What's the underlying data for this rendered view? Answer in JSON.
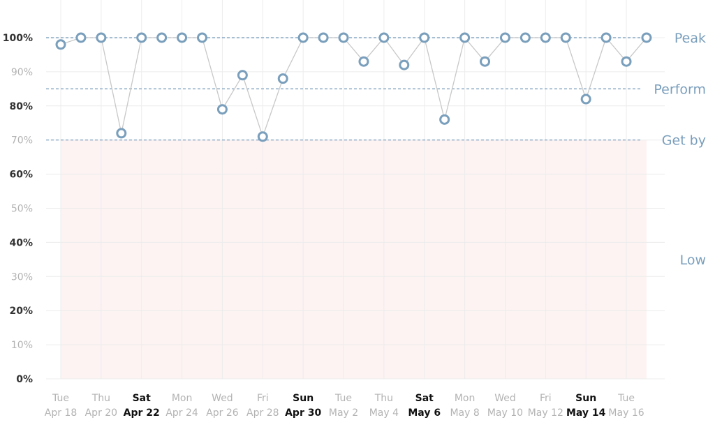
{
  "chart_data": {
    "type": "line",
    "title": "",
    "xlabel": "",
    "ylabel": "",
    "ylim": [
      0,
      100
    ],
    "y_ticks": [
      {
        "value": 0,
        "label": "0%",
        "bold": true
      },
      {
        "value": 10,
        "label": "10%",
        "bold": false
      },
      {
        "value": 20,
        "label": "20%",
        "bold": true
      },
      {
        "value": 30,
        "label": "30%",
        "bold": false
      },
      {
        "value": 40,
        "label": "40%",
        "bold": true
      },
      {
        "value": 50,
        "label": "50%",
        "bold": false
      },
      {
        "value": 60,
        "label": "60%",
        "bold": true
      },
      {
        "value": 70,
        "label": "70%",
        "bold": false
      },
      {
        "value": 80,
        "label": "80%",
        "bold": true
      },
      {
        "value": 90,
        "label": "90%",
        "bold": false
      },
      {
        "value": 100,
        "label": "100%",
        "bold": true
      }
    ],
    "x_tick_labels": [
      {
        "index": 0,
        "day": "Tue",
        "date": "Apr 18",
        "bold": false
      },
      {
        "index": 2,
        "day": "Thu",
        "date": "Apr 20",
        "bold": false
      },
      {
        "index": 4,
        "day": "Sat",
        "date": "Apr 22",
        "bold": true
      },
      {
        "index": 6,
        "day": "Mon",
        "date": "Apr 24",
        "bold": false
      },
      {
        "index": 8,
        "day": "Wed",
        "date": "Apr 26",
        "bold": false
      },
      {
        "index": 10,
        "day": "Fri",
        "date": "Apr 28",
        "bold": false
      },
      {
        "index": 12,
        "day": "Sun",
        "date": "Apr 30",
        "bold": true
      },
      {
        "index": 14,
        "day": "Tue",
        "date": "May 2",
        "bold": false
      },
      {
        "index": 16,
        "day": "Thu",
        "date": "May 4",
        "bold": false
      },
      {
        "index": 18,
        "day": "Sat",
        "date": "May 6",
        "bold": true
      },
      {
        "index": 20,
        "day": "Mon",
        "date": "May 8",
        "bold": false
      },
      {
        "index": 22,
        "day": "Wed",
        "date": "May 10",
        "bold": false
      },
      {
        "index": 24,
        "day": "Fri",
        "date": "May 12",
        "bold": false
      },
      {
        "index": 26,
        "day": "Sun",
        "date": "May 14",
        "bold": true
      },
      {
        "index": 28,
        "day": "Tue",
        "date": "May 16",
        "bold": false
      }
    ],
    "series": [
      {
        "values": [
          98,
          100,
          100,
          72,
          100,
          100,
          100,
          100,
          79,
          89,
          71,
          88,
          100,
          100,
          100,
          93,
          100,
          92,
          100,
          76,
          100,
          93,
          100,
          100,
          100,
          100,
          82,
          100,
          93,
          100
        ]
      }
    ],
    "thresholds": [
      {
        "label": "Peak",
        "value": 100
      },
      {
        "label": "Perform",
        "value": 85
      },
      {
        "label": "Get by",
        "value": 70
      }
    ],
    "low_zone": {
      "label": "Low",
      "from": 0,
      "to": 70
    },
    "grid": true,
    "colors": {
      "marker_stroke": "#7a9fbc",
      "marker_fill": "#ffffff",
      "line": "#c8c8c8",
      "threshold_line": "#6f96b8",
      "zone_label": "#7a9fbc",
      "low_zone_fill": "#fdf3f3",
      "grid": "#ececec",
      "tick_bold": "#333333",
      "tick_light": "#b3b3b3",
      "xtick_bold": "#111111"
    }
  }
}
